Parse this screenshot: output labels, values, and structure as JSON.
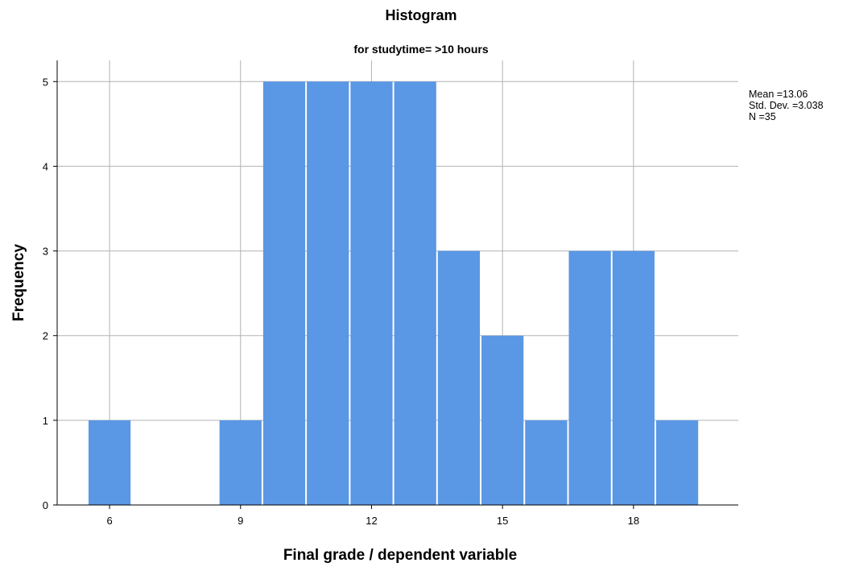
{
  "chart_data": {
    "type": "bar",
    "title": "Histogram",
    "subtitle": "for studytime= >10 hours",
    "xlabel": "Final grade / dependent variable",
    "ylabel": "Frequency",
    "bin_width": 1,
    "bins": [
      {
        "x": 6,
        "value": 1
      },
      {
        "x": 9,
        "value": 1
      },
      {
        "x": 10,
        "value": 5
      },
      {
        "x": 11,
        "value": 5
      },
      {
        "x": 12,
        "value": 5
      },
      {
        "x": 13,
        "value": 5
      },
      {
        "x": 14,
        "value": 3
      },
      {
        "x": 15,
        "value": 2
      },
      {
        "x": 16,
        "value": 1
      },
      {
        "x": 17,
        "value": 3
      },
      {
        "x": 18,
        "value": 3
      },
      {
        "x": 19,
        "value": 1
      }
    ],
    "xlim": [
      4.8,
      20.4
    ],
    "ylim": [
      0,
      5.25
    ],
    "xticks": [
      6,
      9,
      12,
      15,
      18
    ],
    "yticks": [
      0,
      1,
      2,
      3,
      4,
      5
    ],
    "grid": true,
    "stats": {
      "mean_text": "Mean =13.06",
      "std_text": "Std. Dev. =3.038",
      "n_text": "N =35"
    }
  }
}
